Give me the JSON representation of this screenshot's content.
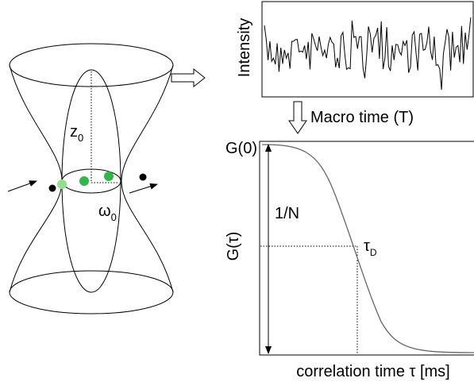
{
  "labels": {
    "z": {
      "text": "z",
      "subscript": "0"
    },
    "omega": {
      "text": "ω",
      "subscript": "0"
    },
    "intensity": "Intensity",
    "macro_time": "Macro time (T)",
    "g0": "G(0)",
    "inv_n": "1/N",
    "g_tau": "G(τ)",
    "tau_d": {
      "text": "τ",
      "subscript": "D"
    },
    "correlation_time": "correlation time τ [ms]"
  }
}
